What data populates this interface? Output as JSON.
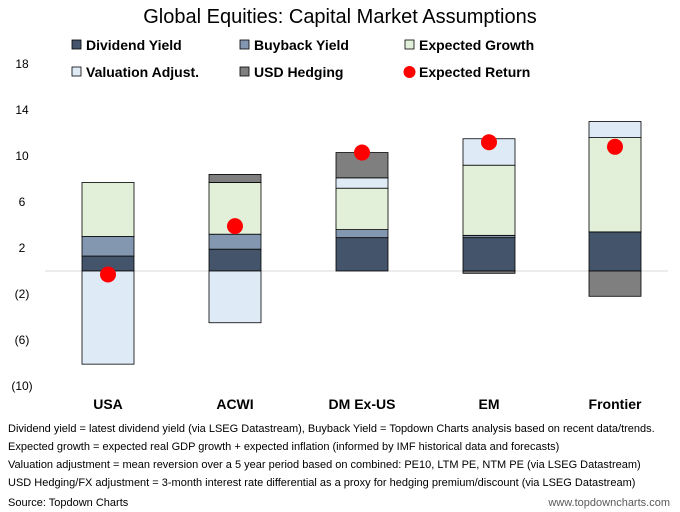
{
  "chart_data": {
    "type": "bar",
    "title": "Global Equities: Capital Market Assumptions",
    "categories": [
      "USA",
      "ACWI",
      "DM Ex-US",
      "EM",
      "Frontier"
    ],
    "ylim": [
      -10,
      18
    ],
    "yticks": [
      18,
      14,
      10,
      6,
      2,
      -2,
      -6,
      -10
    ],
    "ytick_labels": [
      "18",
      "14",
      "10",
      "6",
      "2",
      "(2)",
      "(6)",
      "(10)"
    ],
    "grid": false,
    "legend_position": "top",
    "series": [
      {
        "name": "Dividend Yield",
        "color": "#44546a",
        "values": [
          1.3,
          1.9,
          2.9,
          2.9,
          3.4
        ]
      },
      {
        "name": "Buyback Yield",
        "color": "#8497b0",
        "values": [
          1.7,
          1.3,
          0.7,
          0.2,
          0.0
        ]
      },
      {
        "name": "Expected Growth",
        "color": "#e2efd9",
        "values": [
          4.7,
          4.5,
          3.6,
          6.1,
          8.2
        ]
      },
      {
        "name": "Valuation Adjust.",
        "color": "#deebf7",
        "values": [
          -8.1,
          -4.5,
          0.9,
          2.3,
          1.4
        ]
      },
      {
        "name": "USD Hedging",
        "color": "#7f7f7f",
        "values": [
          0.0,
          0.7,
          2.2,
          -0.2,
          -2.2
        ]
      }
    ],
    "expected_return": {
      "name": "Expected Return",
      "color": "#ff0000",
      "values": [
        -0.3,
        3.9,
        10.3,
        11.2,
        10.8
      ]
    }
  },
  "notes": [
    "Dividend yield = latest dividend yield (via LSEG Datastream), Buyback Yield = Topdown Charts analysis based on recent data/trends.",
    "Expected growth = expected real GDP growth + expected inflation (informed by IMF historical data and forecasts)",
    "Valuation adjustment = mean reversion over a 5 year period based on combined: PE10, LTM PE, NTM PE (via LSEG Datastream)",
    "USD Hedging/FX adjustment = 3-month interest rate differential as a proxy for hedging premium/discount (via LSEG Datastream)"
  ],
  "source": "Source: Topdown Charts",
  "website": "www.topdowncharts.com"
}
